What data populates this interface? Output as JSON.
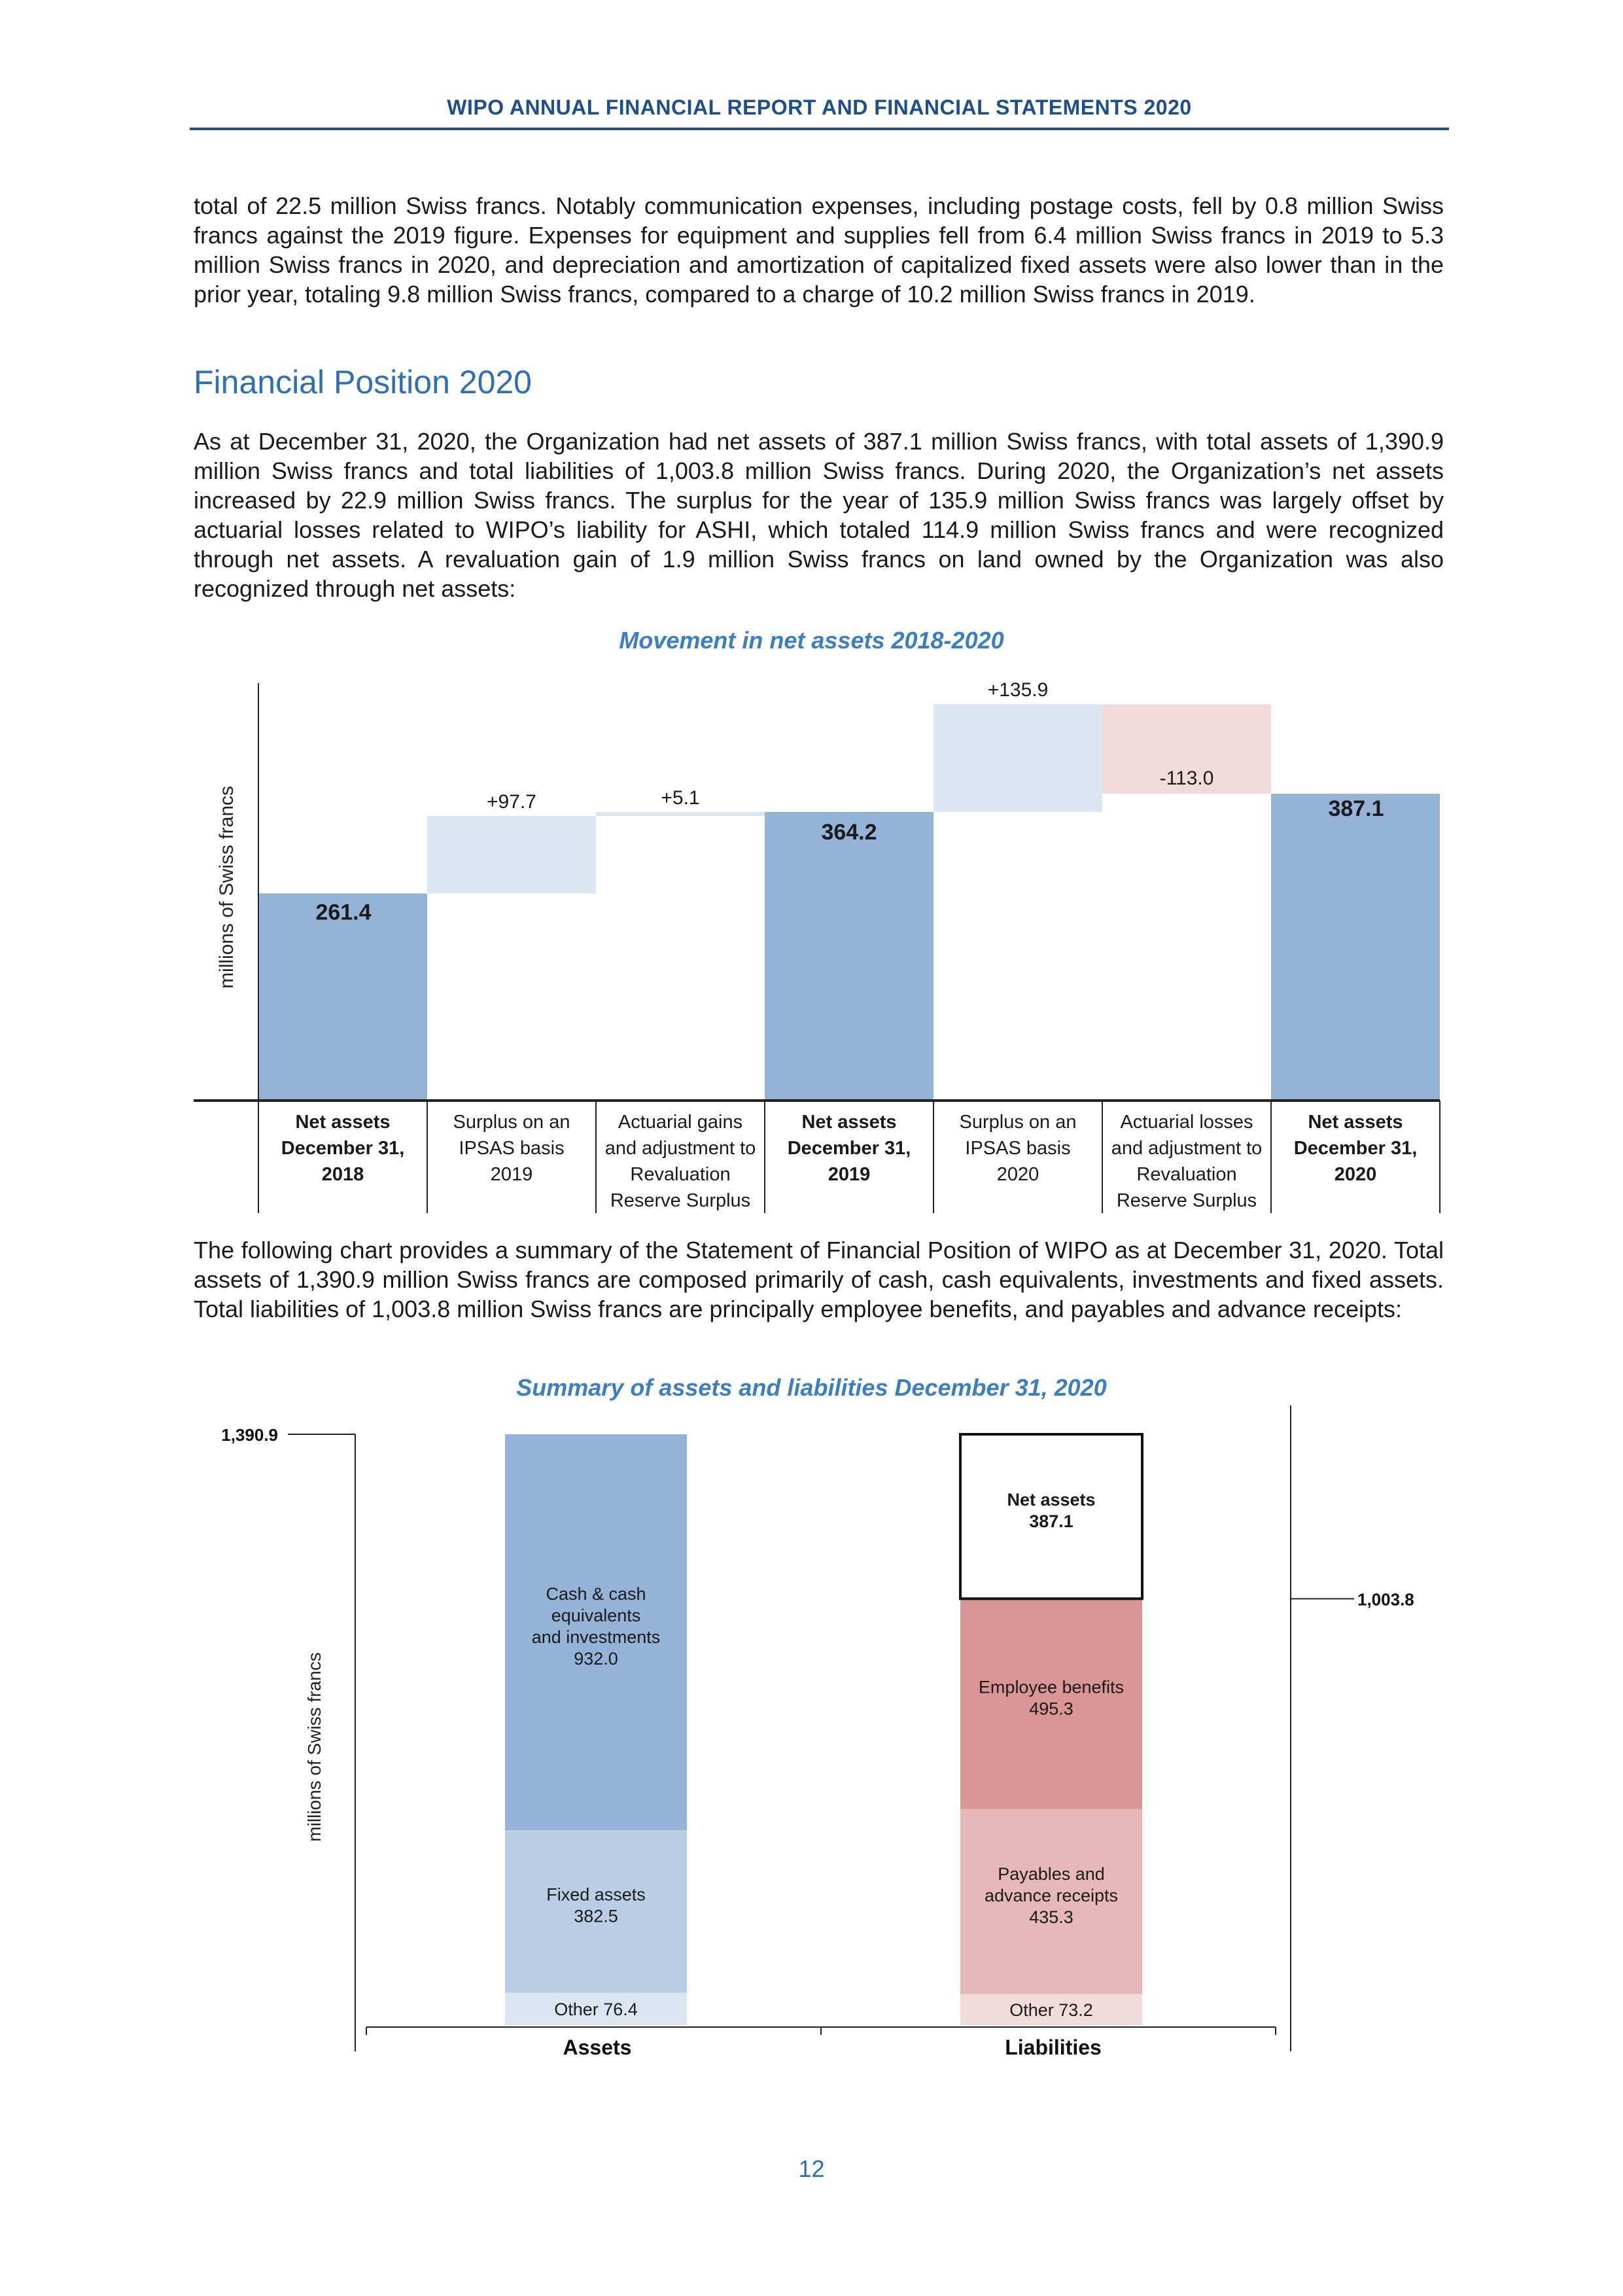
{
  "header": {
    "title": "WIPO ANNUAL FINANCIAL REPORT AND FINANCIAL STATEMENTS 2020"
  },
  "paragraphs": {
    "intro": "total of 22.5 million Swiss francs. Notably communication expenses, including postage costs, fell by 0.8 million Swiss francs against the 2019 figure. Expenses for equipment and supplies fell from 6.4 million Swiss francs in 2019 to 5.3 million Swiss francs in 2020, and depreciation and amortization of capitalized fixed assets were also lower than in the prior year, totaling 9.8 million Swiss francs, compared to a charge of 10.2 million Swiss francs in 2019.",
    "section_title": "Financial Position 2020",
    "position": "As at December 31, 2020, the Organization had net assets of 387.1 million Swiss francs, with total assets of 1,390.9 million Swiss francs and total liabilities of 1,003.8 million Swiss francs. During 2020, the Organization’s net assets increased by 22.9 million Swiss francs. The surplus for the year of 135.9 million Swiss francs was largely offset by actuarial losses related to WIPO’s liability for ASHI, which totaled 114.9 million Swiss francs and were recognized through net assets. A revaluation gain of 1.9 million Swiss francs on land owned by the Organization was also recognized through net assets:",
    "summary": "The following chart provides a summary of the Statement of Financial Position of WIPO as at December 31, 2020. Total assets of 1,390.9 million Swiss francs are composed primarily of cash, cash equivalents, investments and fixed assets. Total liabilities of 1,003.8 million Swiss francs are principally employee benefits, and payables and advance receipts:"
  },
  "page_number": "12",
  "chart_data": [
    {
      "type": "bar",
      "subtype": "waterfall",
      "title": "Movement in net assets 2018-2020",
      "ylabel": "millions of Swiss francs",
      "ylim": [
        0,
        530
      ],
      "steps": [
        {
          "label_lines": [
            "Net assets",
            "December 31,",
            "2018"
          ],
          "bold": true,
          "kind": "total",
          "value": 261.4,
          "label": "261.4"
        },
        {
          "label_lines": [
            "Surplus on an",
            "IPSAS basis",
            "2019"
          ],
          "bold": false,
          "kind": "delta",
          "value": 97.7,
          "label": "+97.7"
        },
        {
          "label_lines": [
            "Actuarial gains",
            "and adjustment to",
            "Revaluation",
            "Reserve Surplus"
          ],
          "bold": false,
          "kind": "delta",
          "value": 5.1,
          "label": "+5.1"
        },
        {
          "label_lines": [
            "Net assets",
            "December 31,",
            "2019"
          ],
          "bold": true,
          "kind": "total",
          "value": 364.2,
          "label": "364.2"
        },
        {
          "label_lines": [
            "Surplus on an",
            "IPSAS basis",
            "2020"
          ],
          "bold": false,
          "kind": "delta",
          "value": 135.9,
          "label": "+135.9"
        },
        {
          "label_lines": [
            "Actuarial losses",
            "and adjustment to",
            "Revaluation",
            "Reserve Surplus"
          ],
          "bold": false,
          "kind": "delta",
          "value": -113.0,
          "label": "-113.0"
        },
        {
          "label_lines": [
            "Net assets",
            "December 31,",
            "2020"
          ],
          "bold": true,
          "kind": "total",
          "value": 387.1,
          "label": "387.1"
        }
      ],
      "colors": {
        "total": "#95b3d7",
        "increase": "#dce6f1",
        "decrease": "#f2dcdb"
      }
    },
    {
      "type": "bar",
      "subtype": "stacked",
      "title": "Summary of assets and liabilities December 31, 2020",
      "ylabel": "millions of Swiss francs",
      "ylim": [
        0,
        1390.9
      ],
      "left_marker": {
        "value": 1390.9,
        "label": "1,390.9"
      },
      "right_marker": {
        "value": 1003.8,
        "label": "1,003.8"
      },
      "categories": [
        "Assets",
        "Liabilities"
      ],
      "stacks": [
        {
          "category": "Assets",
          "segments": [
            {
              "name": "Other",
              "value": 76.4,
              "label_lines": [
                "Other 76.4"
              ],
              "color": "#dce6f1"
            },
            {
              "name": "Fixed assets",
              "value": 382.5,
              "label_lines": [
                "Fixed assets",
                "382.5"
              ],
              "color": "#b9cde5"
            },
            {
              "name": "Cash & cash equivalents and investments",
              "value": 932.0,
              "label_lines": [
                "Cash  & cash",
                "equivalents",
                "and investments",
                "932.0"
              ],
              "color": "#95b3d7"
            }
          ]
        },
        {
          "category": "Liabilities",
          "segments": [
            {
              "name": "Other",
              "value": 73.2,
              "label_lines": [
                "Other 73.2"
              ],
              "color": "#f2dcdb"
            },
            {
              "name": "Payables and advance receipts",
              "value": 435.3,
              "label_lines": [
                "Payables  and",
                "advance  receipts",
                "435.3"
              ],
              "color": "#e6b9b8"
            },
            {
              "name": "Employee benefits",
              "value": 495.3,
              "label_lines": [
                "Employee benefits",
                "495.3"
              ],
              "color": "#d99694"
            },
            {
              "name": "Net assets",
              "value": 387.1,
              "label_lines": [
                "Net assets",
                "387.1"
              ],
              "color": "#ffffff",
              "bold": true
            }
          ]
        }
      ]
    }
  ]
}
